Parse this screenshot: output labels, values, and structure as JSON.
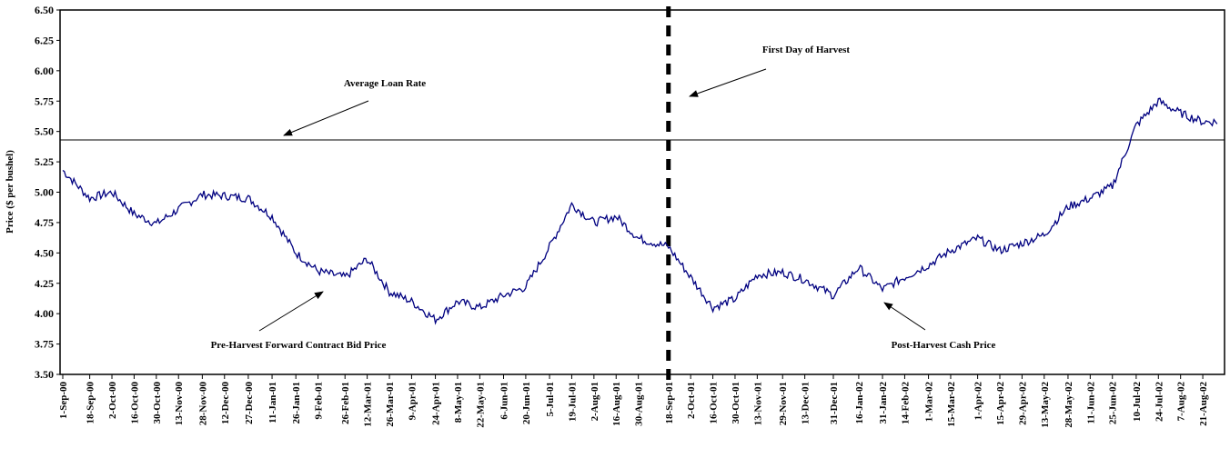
{
  "chart_data": {
    "type": "line",
    "ylabel": "Price ($ per bushel)",
    "ylim": [
      3.5,
      6.5
    ],
    "y_ticks": [
      "3.50",
      "3.75",
      "4.00",
      "4.25",
      "4.50",
      "4.75",
      "5.00",
      "5.25",
      "5.50",
      "5.75",
      "6.00",
      "6.25",
      "6.50"
    ],
    "x_ticks": [
      "1-Sep-00",
      "18-Sep-00",
      "2-Oct-00",
      "16-Oct-00",
      "30-Oct-00",
      "13-Nov-00",
      "28-Nov-00",
      "12-Dec-00",
      "27-Dec-00",
      "11-Jan-01",
      "26-Jan-01",
      "9-Feb-01",
      "26-Feb-01",
      "12-Mar-01",
      "26-Mar-01",
      "9-Apr-01",
      "24-Apr-01",
      "8-May-01",
      "22-May-01",
      "6-Jun-01",
      "20-Jun-01",
      "5-Jul-01",
      "19-Jul-01",
      "2-Aug-01",
      "16-Aug-01",
      "30-Aug-01",
      "18-Sep-01",
      "2-Oct-01",
      "16-Oct-01",
      "30-Oct-01",
      "13-Nov-01",
      "29-Nov-01",
      "13-Dec-01",
      "31-Dec-01",
      "16-Jan-02",
      "31-Jan-02",
      "14-Feb-02",
      "1-Mar-02",
      "15-Mar-02",
      "1-Apr-02",
      "15-Apr-02",
      "29-Apr-02",
      "13-May-02",
      "28-May-02",
      "11-Jun-02",
      "25-Jun-02",
      "10-Jul-02",
      "24-Jul-02",
      "7-Aug-02",
      "21-Aug-02"
    ],
    "grid": false,
    "series": [
      {
        "values": [
          [
            "1-Sep-00",
            5.18
          ],
          [
            "18-Sep-00",
            4.95
          ],
          [
            "2-Oct-00",
            5.0
          ],
          [
            "16-Oct-00",
            4.82
          ],
          [
            "30-Oct-00",
            4.74
          ],
          [
            "13-Nov-00",
            4.86
          ],
          [
            "28-Nov-00",
            4.98
          ],
          [
            "12-Dec-00",
            4.97
          ],
          [
            "27-Dec-00",
            4.95
          ],
          [
            "11-Jan-01",
            4.8
          ],
          [
            "26-Jan-01",
            4.5
          ],
          [
            "9-Feb-01",
            4.35
          ],
          [
            "26-Feb-01",
            4.3
          ],
          [
            "12-Mar-01",
            4.45
          ],
          [
            "26-Mar-01",
            4.18
          ],
          [
            "9-Apr-01",
            4.1
          ],
          [
            "24-Apr-01",
            3.95
          ],
          [
            "8-May-01",
            4.1
          ],
          [
            "22-May-01",
            4.05
          ],
          [
            "6-Jun-01",
            4.15
          ],
          [
            "20-Jun-01",
            4.22
          ],
          [
            "5-Jul-01",
            4.55
          ],
          [
            "19-Jul-01",
            4.9
          ],
          [
            "2-Aug-01",
            4.75
          ],
          [
            "16-Aug-01",
            4.8
          ],
          [
            "30-Aug-01",
            4.62
          ],
          [
            "18-Sep-01",
            4.55
          ],
          [
            "2-Oct-01",
            4.3
          ],
          [
            "16-Oct-01",
            4.05
          ],
          [
            "30-Oct-01",
            4.12
          ],
          [
            "13-Nov-01",
            4.32
          ],
          [
            "29-Nov-01",
            4.34
          ],
          [
            "13-Dec-01",
            4.28
          ],
          [
            "31-Dec-01",
            4.15
          ],
          [
            "16-Jan-02",
            4.38
          ],
          [
            "31-Jan-02",
            4.2
          ],
          [
            "14-Feb-02",
            4.3
          ],
          [
            "1-Mar-02",
            4.4
          ],
          [
            "15-Mar-02",
            4.52
          ],
          [
            "1-Apr-02",
            4.62
          ],
          [
            "15-Apr-02",
            4.52
          ],
          [
            "29-Apr-02",
            4.58
          ],
          [
            "13-May-02",
            4.65
          ],
          [
            "28-May-02",
            4.88
          ],
          [
            "11-Jun-02",
            4.95
          ],
          [
            "25-Jun-02",
            5.05
          ],
          [
            "10-Jul-02",
            5.55
          ],
          [
            "24-Jul-02",
            5.75
          ],
          [
            "7-Aug-02",
            5.65
          ],
          [
            "21-Aug-02",
            5.58
          ]
        ]
      }
    ],
    "reference_lines": {
      "average_loan_rate": 5.43,
      "first_day_of_harvest": "18-Sep-01"
    },
    "annotations": {
      "loan_rate": "Average Loan Rate",
      "harvest": "First Day of Harvest",
      "pre_harvest": "Pre-Harvest Forward Contract Bid Price",
      "post_harvest": "Post-Harvest Cash Price"
    },
    "colors": {
      "series": "#000080",
      "axis": "#000000"
    }
  }
}
